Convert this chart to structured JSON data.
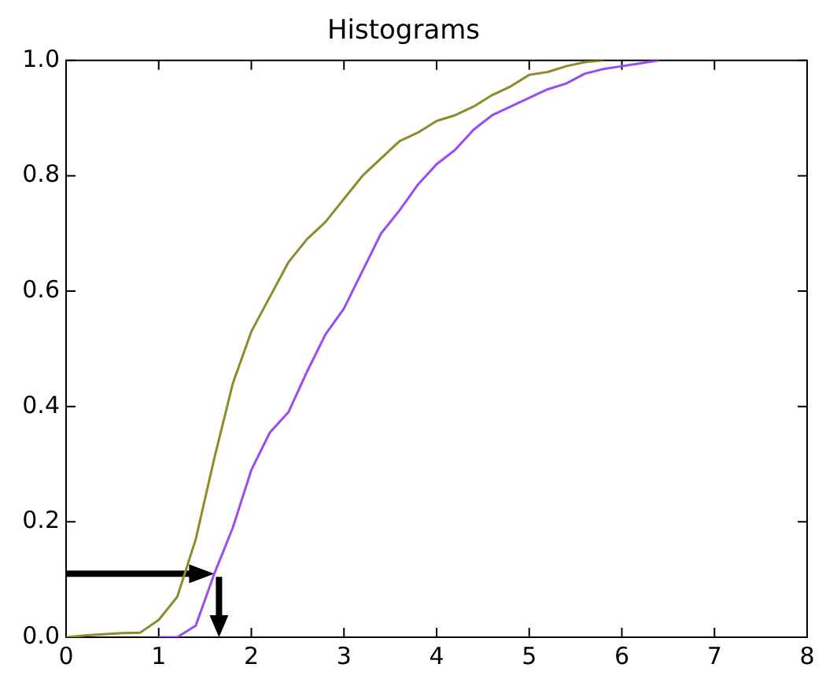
{
  "chart_data": {
    "type": "line",
    "title": "Histograms",
    "series": [
      {
        "color": "#8c8c2a",
        "x": [
          0,
          0.2,
          0.4,
          0.6,
          0.8,
          1.0,
          1.2,
          1.4,
          1.6,
          1.8,
          2.0,
          2.2,
          2.4,
          2.6,
          2.8,
          3.0,
          3.2,
          3.4,
          3.6,
          3.8,
          4.0,
          4.2,
          4.4,
          4.6,
          4.8,
          5.0,
          5.2,
          5.4,
          5.6,
          5.8
        ],
        "values": [
          0,
          0.003,
          0.005,
          0.007,
          0.008,
          0.03,
          0.07,
          0.17,
          0.31,
          0.44,
          0.53,
          0.59,
          0.65,
          0.69,
          0.72,
          0.76,
          0.8,
          0.83,
          0.86,
          0.875,
          0.895,
          0.905,
          0.92,
          0.94,
          0.955,
          0.975,
          0.98,
          0.99,
          0.997,
          1.0
        ]
      },
      {
        "color": "#9b4cf0",
        "x": [
          1.0,
          1.2,
          1.4,
          1.6,
          1.8,
          2.0,
          2.2,
          2.4,
          2.6,
          2.8,
          3.0,
          3.2,
          3.4,
          3.6,
          3.8,
          4.0,
          4.2,
          4.4,
          4.6,
          4.8,
          5.0,
          5.2,
          5.4,
          5.6,
          5.8,
          6.0,
          6.2,
          6.4
        ],
        "values": [
          0,
          0,
          0.02,
          0.11,
          0.19,
          0.29,
          0.355,
          0.39,
          0.46,
          0.525,
          0.57,
          0.635,
          0.7,
          0.74,
          0.785,
          0.82,
          0.845,
          0.88,
          0.905,
          0.92,
          0.935,
          0.95,
          0.96,
          0.977,
          0.985,
          0.99,
          0.995,
          1.0
        ]
      }
    ],
    "xlim": [
      0,
      8
    ],
    "xticks": [
      0,
      1,
      2,
      3,
      4,
      5,
      6,
      7,
      8
    ],
    "ylim": [
      0,
      1
    ],
    "yticks": [
      {
        "value": 0,
        "label": "0.0"
      },
      {
        "value": 0.2,
        "label": "0.2"
      },
      {
        "value": 0.4,
        "label": "0.4"
      },
      {
        "value": 0.6,
        "label": "0.6"
      },
      {
        "value": 0.8,
        "label": "0.8"
      },
      {
        "value": 1,
        "label": "1.0"
      }
    ],
    "grid": false,
    "legend": false,
    "marker": "none",
    "line_style": "solid"
  }
}
